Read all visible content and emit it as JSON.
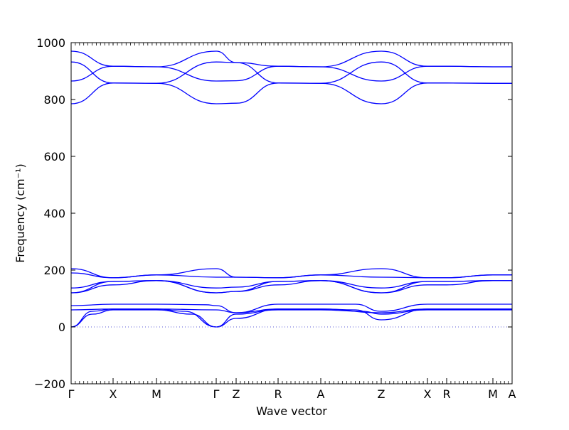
{
  "chart_data": {
    "type": "line",
    "xlabel": "Wave vector",
    "ylabel": "Frequency (cm⁻¹)",
    "ylim": [
      -200,
      1000
    ],
    "yticks": [
      -200,
      0,
      200,
      400,
      600,
      800,
      1000
    ],
    "xlim": [
      0,
      620
    ],
    "x_kpoints": [
      {
        "label": "Γ",
        "x": 0
      },
      {
        "label": "X",
        "x": 59
      },
      {
        "label": "M",
        "x": 120
      },
      {
        "label": "Γ",
        "x": 204
      },
      {
        "label": "Z",
        "x": 232
      },
      {
        "label": "R",
        "x": 291
      },
      {
        "label": "A",
        "x": 351
      },
      {
        "label": "Z",
        "x": 436
      },
      {
        "label": "X",
        "x": 501
      },
      {
        "label": "R",
        "x": 528
      },
      {
        "label": "M",
        "x": 593
      },
      {
        "label": "A",
        "x": 620
      }
    ],
    "zero_line": true,
    "line_color": "#0000ff",
    "zero_line_color": "#5b5bd6",
    "series": [
      {
        "x": [
          0,
          59,
          120,
          204,
          232,
          291,
          351,
          436,
          501,
          528,
          593,
          620
        ],
        "y": [
          970,
          917,
          915,
          970,
          930,
          917,
          915,
          970,
          917,
          917,
          915,
          915
        ]
      },
      {
        "x": [
          0,
          59,
          120,
          204,
          232,
          291,
          351,
          436,
          501,
          528,
          593,
          620
        ],
        "y": [
          932,
          858,
          857,
          932,
          930,
          858,
          857,
          932,
          858,
          858,
          857,
          857
        ]
      },
      {
        "x": [
          0,
          59,
          120,
          204,
          232,
          291,
          351,
          436,
          501,
          528,
          593,
          620
        ],
        "y": [
          865,
          917,
          915,
          865,
          866,
          917,
          915,
          865,
          917,
          917,
          915,
          915
        ]
      },
      {
        "x": [
          0,
          59,
          120,
          204,
          232,
          291,
          351,
          436,
          501,
          528,
          593,
          620
        ],
        "y": [
          785,
          858,
          857,
          785,
          787,
          858,
          857,
          785,
          858,
          858,
          857,
          857
        ]
      },
      {
        "x": [
          0,
          59,
          120,
          204,
          232,
          291,
          351,
          436,
          501,
          528,
          593,
          620
        ],
        "y": [
          205,
          173,
          183,
          205,
          175,
          173,
          183,
          205,
          173,
          173,
          183,
          183
        ]
      },
      {
        "x": [
          0,
          59,
          120,
          204,
          232,
          291,
          351,
          436,
          501,
          528,
          593,
          620
        ],
        "y": [
          190,
          173,
          183,
          175,
          175,
          173,
          183,
          175,
          173,
          173,
          183,
          183
        ]
      },
      {
        "x": [
          0,
          59,
          120,
          204,
          232,
          291,
          351,
          436,
          501,
          528,
          593,
          620
        ],
        "y": [
          137,
          160,
          163,
          137,
          140,
          160,
          163,
          137,
          160,
          160,
          163,
          163
        ]
      },
      {
        "x": [
          0,
          59,
          120,
          204,
          232,
          291,
          351,
          436,
          501,
          528,
          593,
          620
        ],
        "y": [
          120,
          148,
          163,
          120,
          125,
          148,
          163,
          120,
          148,
          148,
          163,
          163
        ]
      },
      {
        "x": [
          0,
          59,
          120,
          204,
          232,
          291,
          351,
          436,
          501,
          528,
          593,
          620
        ],
        "y": [
          120,
          160,
          163,
          120,
          125,
          160,
          163,
          120,
          160,
          160,
          163,
          163
        ]
      },
      {
        "x": [
          0,
          59,
          120,
          190,
          204,
          232,
          291,
          351,
          400,
          436,
          501,
          528,
          593,
          620
        ],
        "y": [
          75,
          80,
          80,
          78,
          75,
          50,
          80,
          80,
          80,
          55,
          80,
          80,
          80,
          80
        ]
      },
      {
        "x": [
          0,
          59,
          120,
          204,
          232,
          291,
          351,
          436,
          501,
          528,
          593,
          620
        ],
        "y": [
          60,
          63,
          63,
          60,
          50,
          63,
          63,
          50,
          63,
          63,
          63,
          63
        ]
      },
      {
        "x": [
          0,
          30,
          59,
          120,
          160,
          204,
          232,
          291,
          351,
          400,
          436,
          501,
          528,
          593,
          620
        ],
        "y": [
          0,
          55,
          63,
          63,
          55,
          0,
          30,
          63,
          63,
          60,
          25,
          63,
          63,
          63,
          63
        ]
      },
      {
        "x": [
          0,
          30,
          59,
          120,
          170,
          204,
          232,
          291,
          351,
          410,
          436,
          501,
          528,
          593,
          620
        ],
        "y": [
          0,
          45,
          60,
          60,
          45,
          0,
          45,
          60,
          60,
          55,
          45,
          60,
          60,
          60,
          60
        ]
      }
    ]
  }
}
